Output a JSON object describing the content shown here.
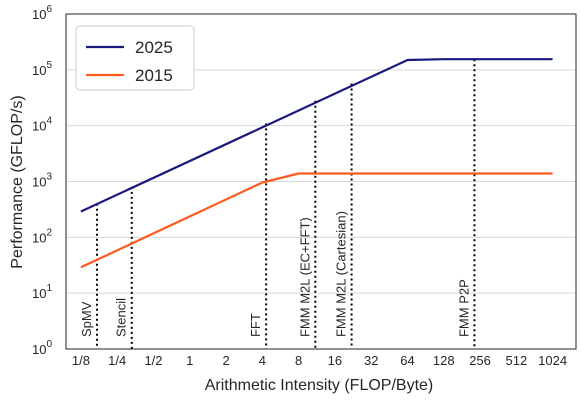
{
  "chart_data": {
    "type": "line",
    "xlabel": "Arithmetic Intensity (FLOP/Byte)",
    "ylabel": "Performance (GFLOP/s)",
    "x_scale": "log2",
    "y_scale": "log10",
    "xlim": [
      0.094,
      1600
    ],
    "ylim": [
      1,
      1000000
    ],
    "x_ticks": [
      {
        "value": 0.125,
        "label": "1/8"
      },
      {
        "value": 0.25,
        "label": "1/4"
      },
      {
        "value": 0.5,
        "label": "1/2"
      },
      {
        "value": 1,
        "label": "1"
      },
      {
        "value": 2,
        "label": "2"
      },
      {
        "value": 4,
        "label": "4"
      },
      {
        "value": 8,
        "label": "8"
      },
      {
        "value": 16,
        "label": "16"
      },
      {
        "value": 32,
        "label": "32"
      },
      {
        "value": 64,
        "label": "64"
      },
      {
        "value": 128,
        "label": "128"
      },
      {
        "value": 256,
        "label": "256"
      },
      {
        "value": 512,
        "label": "512"
      },
      {
        "value": 1024,
        "label": "1024"
      }
    ],
    "y_ticks": [
      {
        "value": 1,
        "base": "10",
        "exp": "0"
      },
      {
        "value": 10,
        "base": "10",
        "exp": "1"
      },
      {
        "value": 100,
        "base": "10",
        "exp": "2"
      },
      {
        "value": 1000,
        "base": "10",
        "exp": "3"
      },
      {
        "value": 10000,
        "base": "10",
        "exp": "4"
      },
      {
        "value": 100000,
        "base": "10",
        "exp": "5"
      },
      {
        "value": 1000000,
        "base": "10",
        "exp": "6"
      }
    ],
    "grid": "horizontal",
    "legend_position": "top-left",
    "series": [
      {
        "name": "2025",
        "color": "#1a1a7e",
        "x": [
          0.125,
          64,
          128,
          1024
        ],
        "y": [
          290,
          150000,
          155000,
          155000
        ]
      },
      {
        "name": "2015",
        "color": "#ff5a1f",
        "x": [
          0.125,
          4,
          8,
          1024
        ],
        "y": [
          29,
          960,
          1390,
          1390
        ]
      }
    ],
    "kernels": [
      {
        "label": "SpMV",
        "x": 0.17,
        "y_top": 400
      },
      {
        "label": "Stencil",
        "x": 0.33,
        "y_top": 800
      },
      {
        "label": "FFT",
        "x": 4.3,
        "y_top": 11000
      },
      {
        "label": "FMM M2L (EC+FFT)",
        "x": 11,
        "y_top": 28000
      },
      {
        "label": "FMM M2L (Cartesian)",
        "x": 22,
        "y_top": 57000
      },
      {
        "label": "FMM P2P",
        "x": 230,
        "y_top": 155000
      }
    ]
  }
}
